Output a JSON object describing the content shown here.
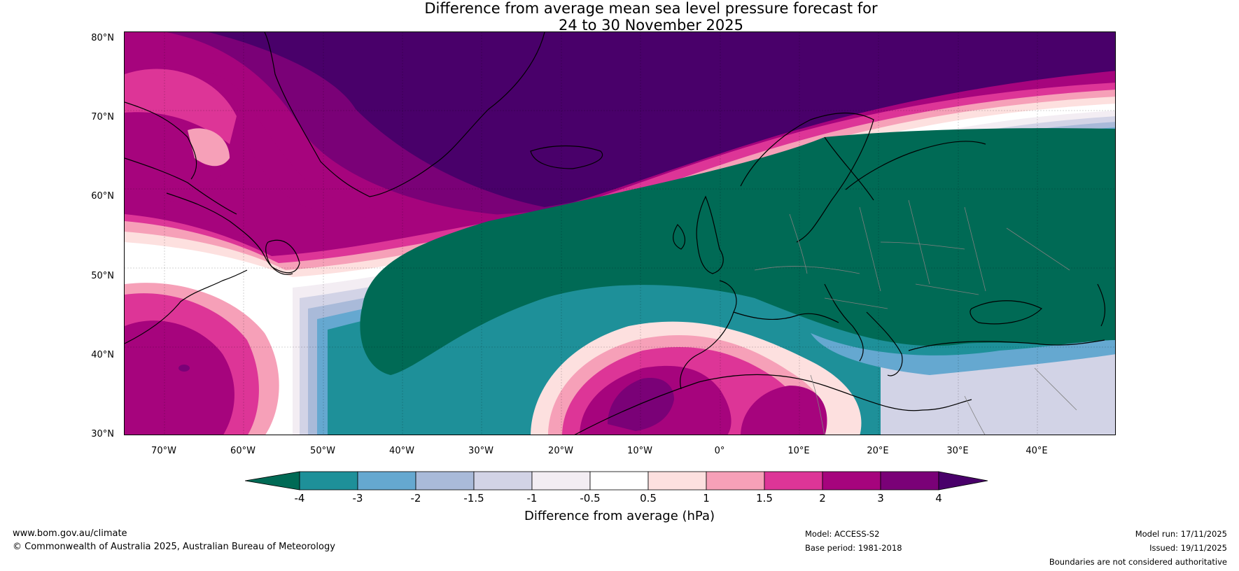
{
  "title_line1": "Difference from average mean sea level pressure forecast for",
  "title_line2": "24 to 30 November 2025",
  "lat_labels": [
    "80°N",
    "70°N",
    "60°N",
    "50°N",
    "40°N",
    "30°N"
  ],
  "lon_labels": [
    "70°W",
    "60°W",
    "50°W",
    "40°W",
    "30°W",
    "20°W",
    "10°W",
    "0°",
    "10°E",
    "20°E",
    "30°E",
    "40°E"
  ],
  "colorbar": {
    "ticks": [
      "-4",
      "-3",
      "-2",
      "-1.5",
      "-1",
      "-0.5",
      "0.5",
      "1",
      "1.5",
      "2",
      "3",
      "4"
    ],
    "colors": [
      "#006a55",
      "#1e9099",
      "#65a8d0",
      "#a9bad9",
      "#d2d3e6",
      "#f3edf3",
      "#ffffff",
      "#fde0df",
      "#f6a0b8",
      "#dd3597",
      "#a6047d",
      "#7a0177",
      "#49006a"
    ],
    "label": "Difference from average (hPa)"
  },
  "footer": {
    "website": "www.bom.gov.au/climate",
    "copyright": "© Commonwealth of Australia 2025, Australian Bureau of Meteorology",
    "model": "Model: ACCESS-S2",
    "base_period": "Base period: 1981-2018",
    "model_run": "Model run: 17/11/2025",
    "issued": "Issued: 19/11/2025",
    "disclaimer": "Boundaries are not considered authoritative"
  }
}
